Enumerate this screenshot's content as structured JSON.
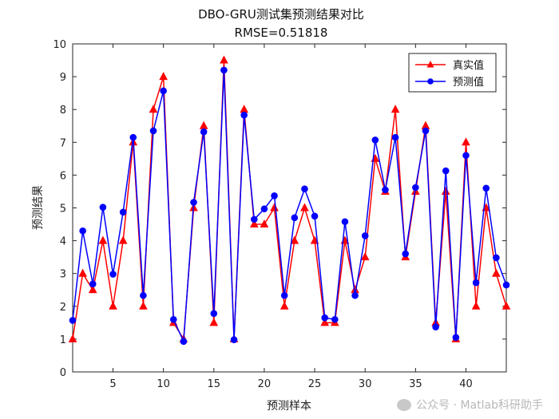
{
  "chart_data": {
    "type": "line",
    "title": "DBO-GRU测试集预测结果对比",
    "subtitle": "RMSE=0.51818",
    "xlabel": "预测样本",
    "ylabel": "预测结果",
    "xlim": [
      1,
      44
    ],
    "ylim": [
      0,
      10
    ],
    "xticks": [
      5,
      10,
      15,
      20,
      25,
      30,
      35,
      40
    ],
    "yticks": [
      0,
      1,
      2,
      3,
      4,
      5,
      6,
      7,
      8,
      9,
      10
    ],
    "legend_position": "top-right",
    "grid": false,
    "x": [
      1,
      2,
      3,
      4,
      5,
      6,
      7,
      8,
      9,
      10,
      11,
      12,
      13,
      14,
      15,
      16,
      17,
      18,
      19,
      20,
      21,
      22,
      23,
      24,
      25,
      26,
      27,
      28,
      29,
      30,
      31,
      32,
      33,
      34,
      35,
      36,
      37,
      38,
      39,
      40,
      41,
      42,
      43,
      44
    ],
    "series": [
      {
        "name": "真实值",
        "color": "#ff0000",
        "marker": "triangle",
        "values": [
          1,
          3,
          2.5,
          4,
          2,
          4,
          7,
          2,
          8,
          9,
          1.5,
          1,
          5,
          7.5,
          1.5,
          9.5,
          1,
          8,
          4.5,
          4.5,
          5,
          2,
          4,
          5,
          4,
          1.5,
          1.5,
          4,
          2.5,
          3.5,
          6.5,
          5.5,
          8,
          3.5,
          5.5,
          7.5,
          1.5,
          5.5,
          1,
          7,
          2,
          5,
          3,
          2
        ]
      },
      {
        "name": "预测值",
        "color": "#0000ff",
        "marker": "circle",
        "values": [
          1.57,
          4.3,
          2.68,
          5.02,
          2.98,
          4.87,
          7.15,
          2.33,
          7.35,
          8.57,
          1.6,
          0.93,
          5.17,
          7.32,
          1.78,
          9.2,
          0.98,
          7.83,
          4.65,
          4.97,
          5.37,
          2.33,
          4.7,
          5.58,
          4.75,
          1.65,
          1.6,
          4.58,
          2.33,
          4.15,
          7.07,
          5.55,
          7.15,
          3.6,
          5.62,
          7.35,
          1.37,
          6.13,
          1.05,
          6.6,
          2.72,
          5.6,
          3.48,
          2.65
        ]
      }
    ]
  },
  "watermark": {
    "text": "公众号 · Matlab科研助手",
    "icon": "wechat-icon"
  }
}
